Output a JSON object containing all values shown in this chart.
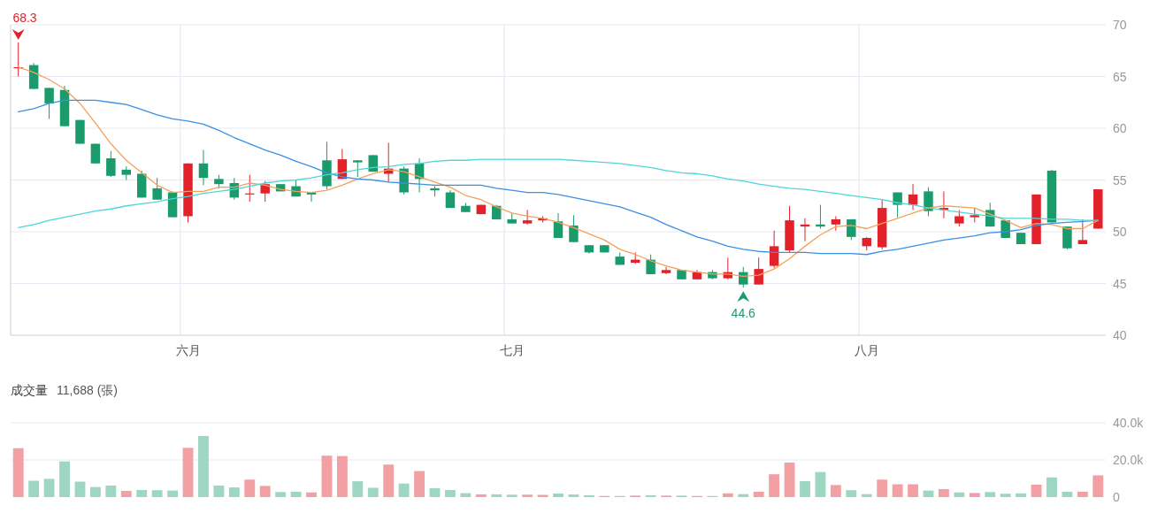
{
  "chart_data": [
    {
      "type": "candlestick",
      "categories": [
        null,
        null,
        null,
        null,
        null,
        null,
        null,
        null,
        null,
        null,
        null,
        "六月",
        null,
        null,
        null,
        null,
        null,
        null,
        null,
        null,
        null,
        null,
        null,
        null,
        null,
        null,
        null,
        null,
        null,
        null,
        null,
        null,
        "七月",
        null,
        null,
        null,
        null,
        null,
        null,
        null,
        null,
        null,
        null,
        null,
        null,
        null,
        null,
        null,
        null,
        null,
        null,
        null,
        null,
        null,
        null,
        "八月",
        null,
        null,
        null,
        null,
        null,
        null,
        null,
        null,
        null,
        null,
        null,
        null,
        null,
        null,
        null
      ],
      "ohlc": [
        [
          65.8,
          68.3,
          65.0,
          65.9
        ],
        [
          66.1,
          66.3,
          63.8,
          63.8
        ],
        [
          63.9,
          63.9,
          60.9,
          62.4
        ],
        [
          63.7,
          64.1,
          60.2,
          60.2
        ],
        [
          60.8,
          60.8,
          58.5,
          58.5
        ],
        [
          58.5,
          58.5,
          56.6,
          56.6
        ],
        [
          57.1,
          57.8,
          55.3,
          55.4
        ],
        [
          56.0,
          56.3,
          55.0,
          55.5
        ],
        [
          55.6,
          55.9,
          53.3,
          53.3
        ],
        [
          54.2,
          55.2,
          53.1,
          53.1
        ],
        [
          53.8,
          53.9,
          51.4,
          51.4
        ],
        [
          51.5,
          56.6,
          50.9,
          56.6
        ],
        [
          56.6,
          57.9,
          54.5,
          55.2
        ],
        [
          55.1,
          55.5,
          54.2,
          54.6
        ],
        [
          54.7,
          55.2,
          53.1,
          53.3
        ],
        [
          53.6,
          55.5,
          52.9,
          53.7
        ],
        [
          53.7,
          54.9,
          52.9,
          54.6
        ],
        [
          54.6,
          54.6,
          53.9,
          53.9
        ],
        [
          54.4,
          55.0,
          53.4,
          53.4
        ],
        [
          53.8,
          53.8,
          52.9,
          53.6
        ],
        [
          56.9,
          58.7,
          54.1,
          54.4
        ],
        [
          55.1,
          58.0,
          55.1,
          57.0
        ],
        [
          56.9,
          56.9,
          55.3,
          56.7
        ],
        [
          57.4,
          57.4,
          55.8,
          55.8
        ],
        [
          55.6,
          58.6,
          54.8,
          56.1
        ],
        [
          56.1,
          56.3,
          53.6,
          53.8
        ],
        [
          56.6,
          57.1,
          53.8,
          55.1
        ],
        [
          54.2,
          54.4,
          53.4,
          54.0
        ],
        [
          53.8,
          54.0,
          52.3,
          52.3
        ],
        [
          52.5,
          52.8,
          51.9,
          51.9
        ],
        [
          51.7,
          52.6,
          51.7,
          52.6
        ],
        [
          52.5,
          52.6,
          51.2,
          51.2
        ],
        [
          51.2,
          51.8,
          50.8,
          50.8
        ],
        [
          50.8,
          52.1,
          50.7,
          51.1
        ],
        [
          51.1,
          51.5,
          50.9,
          51.3
        ],
        [
          51.0,
          51.8,
          49.4,
          49.4
        ],
        [
          50.6,
          51.6,
          49.0,
          49.0
        ],
        [
          48.7,
          48.7,
          47.9,
          48.0
        ],
        [
          48.7,
          48.7,
          48.0,
          48.0
        ],
        [
          47.6,
          48.0,
          46.8,
          46.8
        ],
        [
          47.0,
          48.0,
          46.9,
          47.3
        ],
        [
          47.3,
          47.8,
          45.9,
          45.9
        ],
        [
          46.0,
          46.6,
          45.9,
          46.3
        ],
        [
          46.3,
          46.3,
          45.4,
          45.4
        ],
        [
          45.4,
          46.3,
          45.4,
          46.1
        ],
        [
          46.1,
          46.3,
          45.4,
          45.5
        ],
        [
          45.5,
          47.5,
          45.4,
          46.1
        ],
        [
          46.1,
          46.6,
          44.6,
          44.9
        ],
        [
          44.9,
          47.5,
          44.9,
          46.4
        ],
        [
          46.7,
          50.1,
          46.5,
          48.6
        ],
        [
          48.2,
          52.5,
          48.0,
          51.1
        ],
        [
          50.5,
          51.3,
          49.1,
          50.7
        ],
        [
          50.7,
          52.6,
          50.3,
          50.5
        ],
        [
          50.7,
          51.5,
          50.1,
          51.2
        ],
        [
          51.2,
          51.2,
          49.2,
          49.5
        ],
        [
          48.6,
          49.5,
          48.2,
          49.4
        ],
        [
          48.5,
          53.1,
          48.3,
          52.3
        ],
        [
          53.8,
          53.8,
          51.4,
          52.6
        ],
        [
          52.6,
          54.6,
          52.1,
          53.6
        ],
        [
          53.9,
          54.3,
          51.5,
          52.0
        ],
        [
          52.1,
          53.9,
          51.3,
          52.3
        ],
        [
          50.8,
          52.1,
          50.5,
          51.5
        ],
        [
          51.4,
          52.3,
          50.9,
          51.6
        ],
        [
          52.1,
          52.8,
          50.5,
          50.5
        ],
        [
          51.1,
          51.1,
          49.4,
          49.4
        ],
        [
          49.9,
          49.9,
          48.8,
          48.8
        ],
        [
          48.8,
          53.6,
          48.8,
          53.6
        ],
        [
          55.9,
          56.0,
          50.9,
          50.9
        ],
        [
          50.5,
          50.5,
          48.3,
          48.4
        ],
        [
          48.8,
          51.2,
          48.8,
          49.2
        ],
        [
          50.3,
          54.1,
          50.3,
          54.1
        ]
      ],
      "colors": [
        "#e3212b",
        "#1a9b6b",
        "#1a9b6b",
        "#1a9b6b",
        "#1a9b6b",
        "#1a9b6b",
        "#1a9b6b",
        "#1a9b6b",
        "#1a9b6b",
        "#1a9b6b",
        "#1a9b6b",
        "#e3212b",
        "#1a9b6b",
        "#1a9b6b",
        "#1a9b6b",
        "#e3212b",
        "#e3212b",
        "#1a9b6b",
        "#1a9b6b",
        "#1a9b6b",
        "#1a9b6b",
        "#e3212b",
        "#1a9b6b",
        "#1a9b6b",
        "#e3212b",
        "#1a9b6b",
        "#1a9b6b",
        "#1a9b6b",
        "#1a9b6b",
        "#1a9b6b",
        "#e3212b",
        "#1a9b6b",
        "#1a9b6b",
        "#e3212b",
        "#e3212b",
        "#1a9b6b",
        "#1a9b6b",
        "#1a9b6b",
        "#1a9b6b",
        "#1a9b6b",
        "#e3212b",
        "#1a9b6b",
        "#e3212b",
        "#1a9b6b",
        "#e3212b",
        "#1a9b6b",
        "#e3212b",
        "#1a9b6b",
        "#e3212b",
        "#e3212b",
        "#e3212b",
        "#e3212b",
        "#1a9b6b",
        "#e3212b",
        "#1a9b6b",
        "#e3212b",
        "#e3212b",
        "#1a9b6b",
        "#e3212b",
        "#1a9b6b",
        "#e3212b",
        "#e3212b",
        "#e3212b",
        "#1a9b6b",
        "#1a9b6b",
        "#1a9b6b",
        "#e3212b",
        "#1a9b6b",
        "#1a9b6b",
        "#e3212b",
        "#e3212b"
      ],
      "series": [
        {
          "type": "line",
          "color": "#f5a05a",
          "values": [
            65.9,
            65.4,
            64.7,
            63.8,
            62.4,
            60.5,
            58.5,
            56.9,
            55.7,
            54.5,
            53.8,
            53.9,
            53.9,
            54.3,
            54.3,
            54.7,
            54.5,
            54.1,
            53.9,
            53.8,
            54.0,
            54.5,
            55.1,
            55.6,
            56.0,
            55.8,
            55.3,
            54.8,
            54.3,
            53.5,
            53.1,
            52.4,
            51.8,
            51.5,
            51.3,
            50.9,
            50.4,
            49.8,
            49.2,
            48.3,
            47.8,
            47.2,
            46.7,
            46.3,
            46.1,
            45.9,
            45.9,
            45.7,
            45.8,
            46.4,
            47.4,
            48.6,
            49.7,
            50.5,
            50.6,
            50.3,
            50.8,
            51.3,
            51.8,
            52.3,
            52.5,
            52.4,
            52.3,
            51.7,
            51.1,
            50.4,
            50.8,
            50.7,
            50.3,
            50.3,
            51.1
          ]
        },
        {
          "type": "line",
          "color": "#3b8fe4",
          "values": [
            61.6,
            61.9,
            62.4,
            62.7,
            62.7,
            62.7,
            62.5,
            62.3,
            61.8,
            61.3,
            60.9,
            60.7,
            60.4,
            59.8,
            59.1,
            58.5,
            57.9,
            57.4,
            56.8,
            56.3,
            55.7,
            55.3,
            55.1,
            55.0,
            54.8,
            54.7,
            54.6,
            54.5,
            54.5,
            54.5,
            54.5,
            54.2,
            54.0,
            53.8,
            53.8,
            53.6,
            53.3,
            53.0,
            52.7,
            52.4,
            51.9,
            51.4,
            50.7,
            50.1,
            49.5,
            49.1,
            48.6,
            48.3,
            48.1,
            48.0,
            48.0,
            48.0,
            47.9,
            47.9,
            47.9,
            47.8,
            48.1,
            48.3,
            48.6,
            48.9,
            49.2,
            49.4,
            49.6,
            49.9,
            50.0,
            50.2,
            50.6,
            50.8,
            50.9,
            51.0,
            51.1
          ]
        },
        {
          "type": "line",
          "color": "#4fd6d6",
          "values": [
            50.4,
            50.7,
            51.1,
            51.4,
            51.7,
            52.0,
            52.2,
            52.5,
            52.7,
            52.9,
            53.2,
            53.4,
            53.7,
            53.9,
            54.1,
            54.4,
            54.7,
            54.9,
            55.0,
            55.2,
            55.5,
            55.7,
            56.0,
            56.2,
            56.3,
            56.5,
            56.6,
            56.8,
            56.9,
            56.9,
            57.0,
            57.0,
            57.0,
            57.0,
            57.0,
            57.0,
            56.9,
            56.8,
            56.7,
            56.6,
            56.4,
            56.2,
            55.9,
            55.7,
            55.6,
            55.4,
            55.1,
            54.9,
            54.6,
            54.4,
            54.2,
            54.1,
            53.9,
            53.7,
            53.5,
            53.3,
            53.1,
            52.8,
            52.6,
            52.3,
            52.1,
            51.9,
            51.7,
            51.5,
            51.3,
            51.3,
            51.3,
            51.2,
            51.2,
            51.1,
            51.1
          ]
        }
      ],
      "ylim": [
        40,
        70
      ],
      "yticks": [
        40,
        45,
        50,
        55,
        60,
        65,
        70
      ],
      "grid": true,
      "annotations": [
        "68.3",
        "44.6"
      ]
    },
    {
      "type": "bar",
      "title": "成交量",
      "subtitle": "11,688 (張)",
      "categories": [
        null,
        null,
        null,
        null,
        null,
        null,
        null,
        null,
        null,
        null,
        null,
        null,
        null,
        null,
        null,
        null,
        null,
        null,
        null,
        null,
        null,
        null,
        null,
        null,
        null,
        null,
        null,
        null,
        null,
        null,
        null,
        null,
        null,
        null,
        null,
        null,
        null,
        null,
        null,
        null,
        null,
        null,
        null,
        null,
        null,
        null,
        null,
        null,
        null,
        null,
        null,
        null,
        null,
        null,
        null,
        null,
        null,
        null,
        null,
        null,
        null,
        null,
        null,
        null,
        null,
        null,
        null,
        null,
        null,
        null,
        null
      ],
      "values": [
        26300,
        8800,
        9800,
        19200,
        8300,
        5400,
        6200,
        3300,
        3800,
        3700,
        3500,
        26500,
        32900,
        6200,
        5200,
        9400,
        6000,
        2700,
        2900,
        2500,
        22300,
        22100,
        8500,
        5000,
        17500,
        7300,
        14000,
        4800,
        3800,
        2100,
        1500,
        1500,
        1300,
        1300,
        1200,
        1900,
        1400,
        1000,
        600,
        600,
        800,
        1000,
        800,
        800,
        600,
        600,
        2000,
        1600,
        2900,
        12300,
        18600,
        8600,
        13500,
        6500,
        3700,
        1600,
        9400,
        6900,
        6900,
        3500,
        4300,
        2500,
        2200,
        2700,
        1800,
        2000,
        6700,
        10600,
        2900,
        2900,
        11688
      ],
      "colors": [
        "#f2a0a3",
        "#9dd6c1",
        "#9dd6c1",
        "#9dd6c1",
        "#9dd6c1",
        "#9dd6c1",
        "#9dd6c1",
        "#f2a0a3",
        "#9dd6c1",
        "#9dd6c1",
        "#9dd6c1",
        "#f2a0a3",
        "#9dd6c1",
        "#9dd6c1",
        "#9dd6c1",
        "#f2a0a3",
        "#f2a0a3",
        "#9dd6c1",
        "#9dd6c1",
        "#f2a0a3",
        "#f2a0a3",
        "#f2a0a3",
        "#9dd6c1",
        "#9dd6c1",
        "#f2a0a3",
        "#9dd6c1",
        "#f2a0a3",
        "#9dd6c1",
        "#9dd6c1",
        "#9dd6c1",
        "#f2a0a3",
        "#9dd6c1",
        "#9dd6c1",
        "#f2a0a3",
        "#f2a0a3",
        "#9dd6c1",
        "#9dd6c1",
        "#9dd6c1",
        "#f2a0a3",
        "#9dd6c1",
        "#f2a0a3",
        "#9dd6c1",
        "#f2a0a3",
        "#9dd6c1",
        "#f2a0a3",
        "#9dd6c1",
        "#f2a0a3",
        "#9dd6c1",
        "#f2a0a3",
        "#f2a0a3",
        "#f2a0a3",
        "#9dd6c1",
        "#9dd6c1",
        "#f2a0a3",
        "#9dd6c1",
        "#9dd6c1",
        "#f2a0a3",
        "#f2a0a3",
        "#f2a0a3",
        "#9dd6c1",
        "#f2a0a3",
        "#9dd6c1",
        "#f2a0a3",
        "#9dd6c1",
        "#9dd6c1",
        "#9dd6c1",
        "#f2a0a3",
        "#9dd6c1",
        "#9dd6c1",
        "#f2a0a3",
        "#f2a0a3"
      ],
      "ylim": [
        0,
        40000
      ],
      "yticks": [
        0,
        {
          "value": 20000,
          "label": "20.0k"
        },
        {
          "value": 40000,
          "label": "40.0k"
        }
      ],
      "grid": "y",
      "tick_labels": "y"
    }
  ]
}
